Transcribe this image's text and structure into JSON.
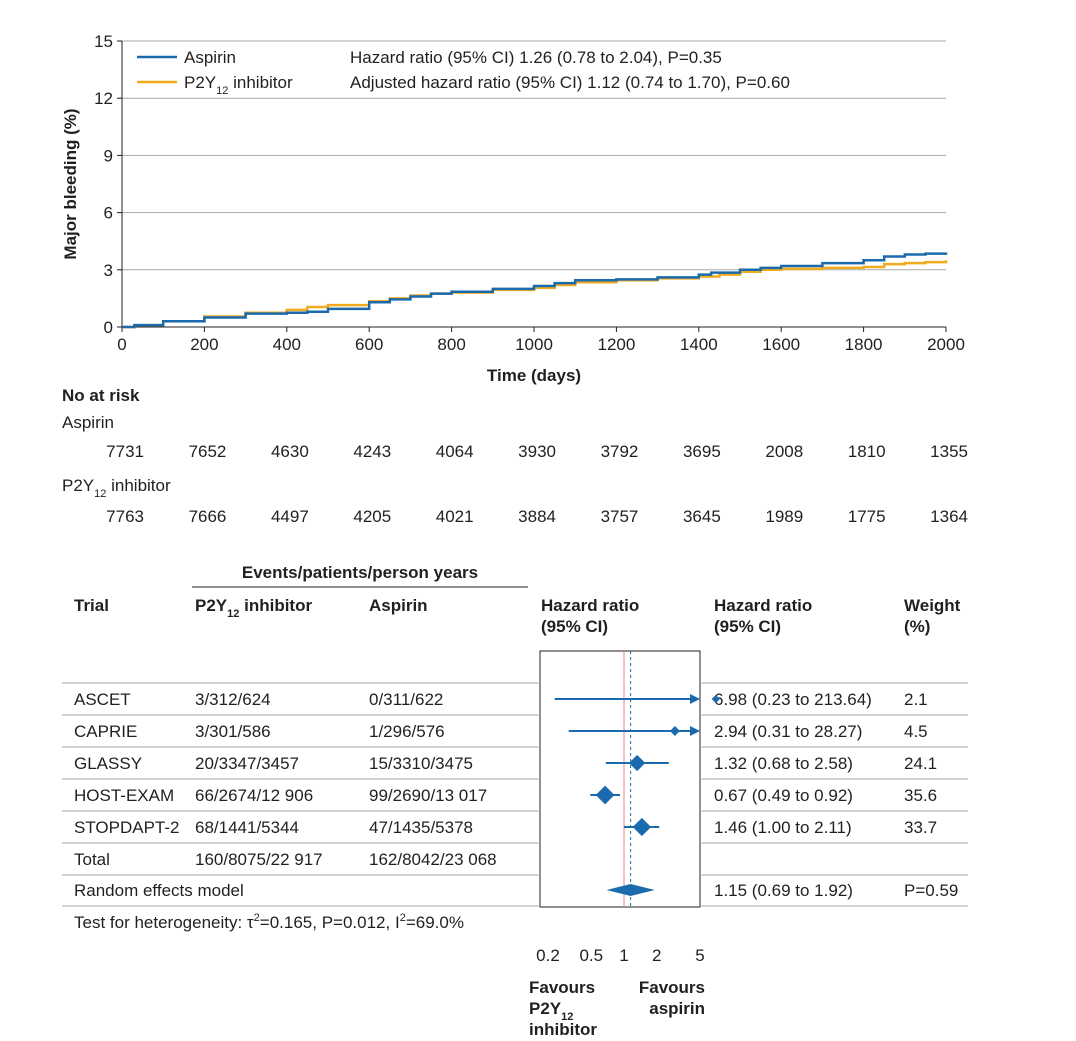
{
  "colors": {
    "aspirin": "#1a6aad",
    "p2y12": "#f0ac1e",
    "grid": "#a7a9ac",
    "forest": "#1a6aad",
    "null_line": "#e8808a"
  },
  "chart_data": [
    {
      "type": "line",
      "ylabel": "Major bleeding (%)",
      "xlabel": "Time (days)",
      "xlim": [
        0,
        2000
      ],
      "ylim": [
        0,
        15
      ],
      "x_ticks": [
        "0",
        "200",
        "400",
        "600",
        "800",
        "1000",
        "1200",
        "1400",
        "1600",
        "1800",
        "2000"
      ],
      "y_ticks": [
        "0",
        "3",
        "6",
        "9",
        "12",
        "15"
      ],
      "grid": "horizontal",
      "legend": [
        {
          "label": "Aspirin",
          "stat": "Hazard ratio (95% CI) 1.26 (0.78 to 2.04), P=0.35",
          "color_key": "aspirin"
        },
        {
          "label_main": "P2Y",
          "label_sub": "12",
          "label_tail": " inhibitor",
          "stat": "Adjusted hazard ratio (95% CI) 1.12 (0.74 to 1.70), P=0.60",
          "color_key": "p2y12"
        }
      ],
      "series": [
        {
          "name": "Aspirin",
          "color_key": "aspirin",
          "x": [
            0,
            30,
            100,
            200,
            300,
            400,
            450,
            500,
            600,
            650,
            700,
            750,
            800,
            900,
            1000,
            1050,
            1100,
            1200,
            1300,
            1400,
            1430,
            1500,
            1550,
            1600,
            1700,
            1800,
            1850,
            1900,
            1950,
            2000
          ],
          "y": [
            0,
            0.1,
            0.3,
            0.5,
            0.7,
            0.75,
            0.8,
            0.95,
            1.3,
            1.45,
            1.6,
            1.75,
            1.85,
            2.0,
            2.15,
            2.3,
            2.45,
            2.5,
            2.6,
            2.75,
            2.85,
            3.0,
            3.1,
            3.2,
            3.35,
            3.5,
            3.7,
            3.8,
            3.85,
            3.9
          ]
        },
        {
          "name": "P2Y12 inhibitor",
          "color_key": "p2y12",
          "x": [
            0,
            30,
            100,
            200,
            300,
            400,
            450,
            500,
            600,
            650,
            700,
            750,
            800,
            900,
            1000,
            1050,
            1100,
            1200,
            1300,
            1400,
            1450,
            1500,
            1550,
            1600,
            1700,
            1800,
            1850,
            1900,
            1950,
            2000
          ],
          "y": [
            0,
            0.1,
            0.3,
            0.55,
            0.75,
            0.9,
            1.05,
            1.15,
            1.35,
            1.5,
            1.65,
            1.75,
            1.8,
            1.95,
            2.05,
            2.2,
            2.35,
            2.45,
            2.55,
            2.65,
            2.75,
            2.9,
            3.0,
            3.05,
            3.1,
            3.15,
            3.3,
            3.35,
            3.4,
            3.5
          ]
        }
      ],
      "at_risk": {
        "title": "No at risk",
        "groups": [
          {
            "label": "Aspirin",
            "values": [
              "7731",
              "7652",
              "4630",
              "4243",
              "4064",
              "3930",
              "3792",
              "3695",
              "2008",
              "1810",
              "1355"
            ]
          },
          {
            "label_main": "P2Y",
            "label_sub": "12",
            "label_tail": " inhibitor",
            "values": [
              "7763",
              "7666",
              "4497",
              "4205",
              "4021",
              "3884",
              "3757",
              "3645",
              "1989",
              "1775",
              "1364"
            ]
          }
        ]
      }
    },
    {
      "type": "forest",
      "events_header": "Events/patients/person years",
      "headers": {
        "trial": "Trial",
        "p2y_main": "P2Y",
        "p2y_sub": "12",
        "p2y_tail": " inhibitor",
        "aspirin": "Aspirin",
        "hr_plot_1": "Hazard ratio",
        "hr_plot_2": "(95% CI)",
        "hr_text_1": "Hazard ratio",
        "hr_text_2": "(95% CI)",
        "weight_1": "Weight",
        "weight_2": "(%)"
      },
      "x_scale": "log",
      "xlim": [
        0.2,
        5
      ],
      "x_ticks": [
        {
          "value": 0.2,
          "label": "0.2"
        },
        {
          "value": 0.5,
          "label": "0.5"
        },
        {
          "value": 1,
          "label": "1"
        },
        {
          "value": 2,
          "label": "2"
        },
        {
          "value": 5,
          "label": "5"
        }
      ],
      "null_value": 1,
      "pooled_value": 1.15,
      "rows": [
        {
          "trial": "ASCET",
          "p2y12": "3/312/624",
          "aspirin": "0/311/622",
          "hr_text": "6.98 (0.23 to 213.64)",
          "weight": "2.1",
          "hr": 6.98,
          "lo": 0.23,
          "hi": 213.64,
          "w": 2.1
        },
        {
          "trial": "CAPRIE",
          "p2y12": "3/301/586",
          "aspirin": "1/296/576",
          "hr_text": "2.94 (0.31 to 28.27)",
          "weight": "4.5",
          "hr": 2.94,
          "lo": 0.31,
          "hi": 28.27,
          "w": 4.5
        },
        {
          "trial": "GLASSY",
          "p2y12": "20/3347/3457",
          "aspirin": "15/3310/3475",
          "hr_text": "1.32 (0.68 to 2.58)",
          "weight": "24.1",
          "hr": 1.32,
          "lo": 0.68,
          "hi": 2.58,
          "w": 24.1
        },
        {
          "trial": "HOST-EXAM",
          "p2y12": "66/2674/12 906",
          "aspirin": "99/2690/13 017",
          "hr_text": "0.67 (0.49 to 0.92)",
          "weight": "35.6",
          "hr": 0.67,
          "lo": 0.49,
          "hi": 0.92,
          "w": 35.6
        },
        {
          "trial": "STOPDAPT-2",
          "p2y12": "68/1441/5344",
          "aspirin": "47/1435/5378",
          "hr_text": "1.46 (1.00 to 2.11)",
          "weight": "33.7",
          "hr": 1.46,
          "lo": 1.0,
          "hi": 2.11,
          "w": 33.7
        }
      ],
      "total": {
        "label": "Total",
        "p2y12": "160/8075/22 917",
        "aspirin": "162/8042/23 068"
      },
      "pooled": {
        "label": "Random effects model",
        "hr_text": "1.15 (0.69 to 1.92)",
        "p": "P=0.59",
        "hr": 1.15,
        "lo": 0.69,
        "hi": 1.92
      },
      "heterogeneity": {
        "prefix": "Test for heterogeneity: τ",
        "sup1": "2",
        "mid": "=0.165, P=0.012, I",
        "sup2": "2",
        "suffix": "=69.0%"
      },
      "favours_left": {
        "line1": "Favours",
        "line2_main": "P2Y",
        "line2_sub": "12",
        "line3": "inhibitor"
      },
      "favours_right": {
        "line1": "Favours",
        "line2": "aspirin"
      }
    }
  ]
}
